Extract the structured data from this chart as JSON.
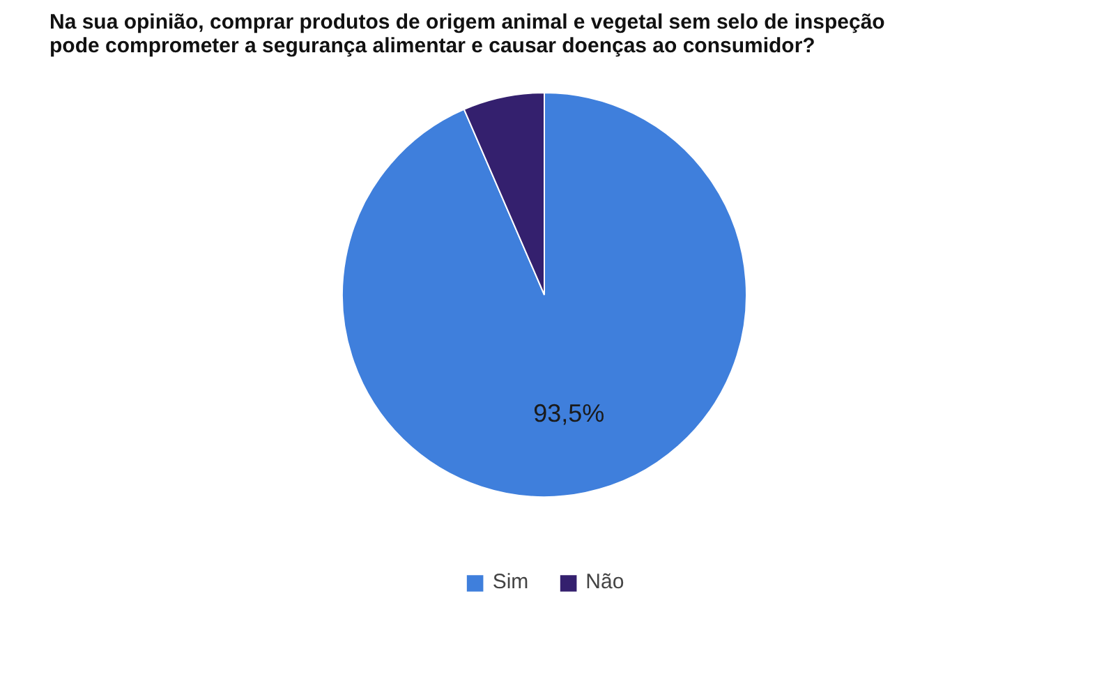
{
  "chart_data": {
    "type": "pie",
    "title": "Na sua opinião, comprar produtos de origem animal e vegetal sem selo de inspeção pode comprometer a segurança alimentar e causar doenças ao consumidor?",
    "categories": [
      "Sim",
      "Não"
    ],
    "values": [
      93.5,
      6.5
    ],
    "colors": [
      "#3f7fdc",
      "#34206e"
    ],
    "value_labels": [
      "93,5%",
      null
    ],
    "legend": "bottom"
  }
}
